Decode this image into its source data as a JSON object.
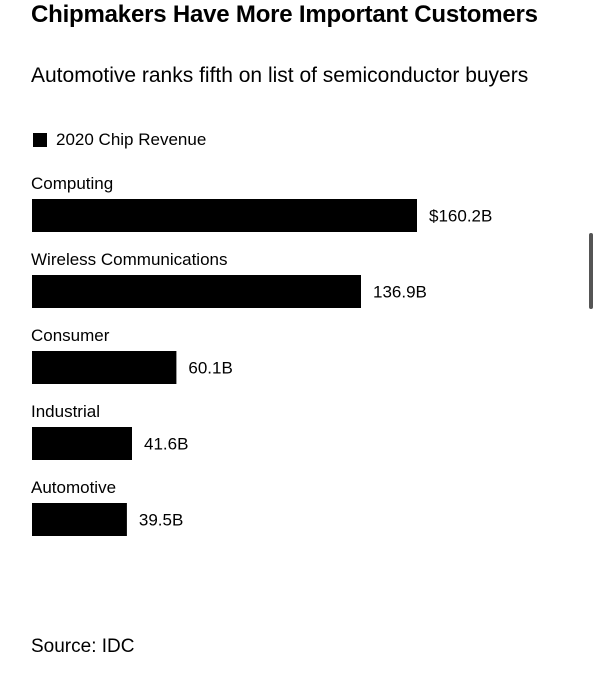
{
  "chart_data": {
    "type": "bar",
    "orientation": "horizontal",
    "title": "Chipmakers Have More Important Customers",
    "subtitle": "Automotive ranks fifth on list of semiconductor buyers",
    "legend": [
      {
        "name": "2020 Chip Revenue",
        "color": "#000000"
      }
    ],
    "legend_placement": "top-left",
    "categories": [
      "Computing",
      "Wireless Communications",
      "Consumer",
      "Industrial",
      "Automotive"
    ],
    "series": [
      {
        "name": "2020 Chip Revenue",
        "values": [
          160.2,
          136.9,
          60.1,
          41.6,
          39.5
        ]
      }
    ],
    "data_labels": [
      "$160.2B",
      "136.9B",
      "60.1B",
      "41.6B",
      "39.5B"
    ],
    "unit": "$B",
    "xlim": [
      0,
      160.2
    ],
    "grid": false,
    "source": "Source: IDC"
  },
  "colors": {
    "bar": "#000000",
    "text": "#000000",
    "background": "#ffffff",
    "scrollbar": "#555555"
  }
}
